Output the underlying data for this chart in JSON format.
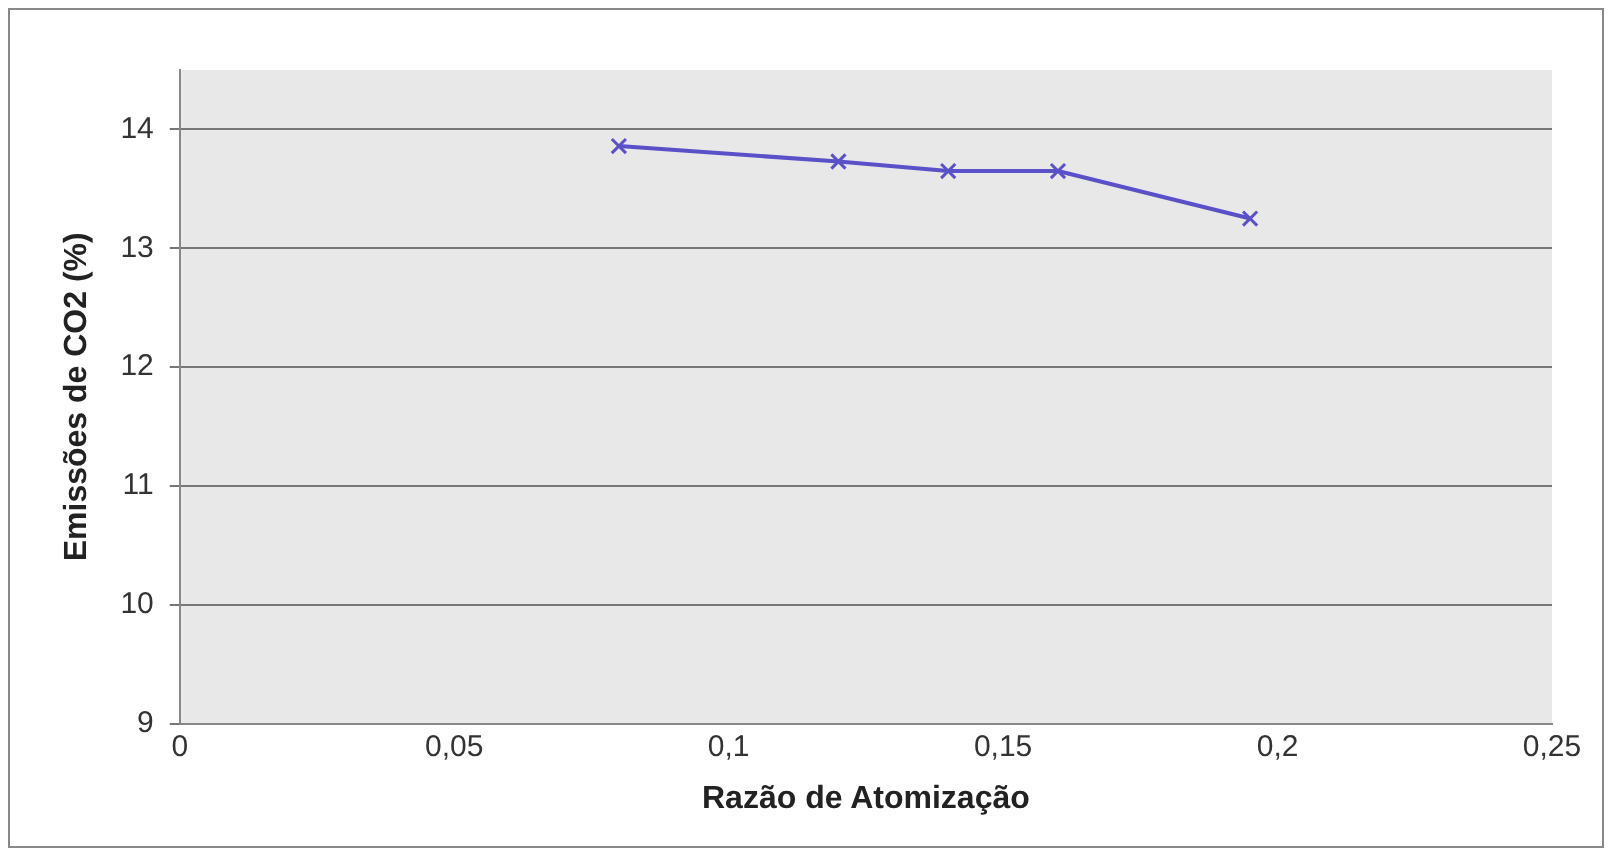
{
  "chart_data": {
    "type": "line",
    "xlabel": "Razão de Atomização",
    "ylabel": "Emissões de CO2 (%)",
    "x": [
      0.08,
      0.12,
      0.14,
      0.16,
      0.195
    ],
    "series": [
      {
        "color": "#5a50c8",
        "values": [
          13.86,
          13.73,
          13.65,
          13.65,
          13.25
        ]
      }
    ],
    "xlim": [
      0,
      0.25
    ],
    "xticks": [
      0,
      {
        "value": 0.05,
        "label": "0,05"
      },
      {
        "value": 0.1,
        "label": "0,1"
      },
      {
        "value": 0.15,
        "label": "0,15"
      },
      {
        "value": 0.2,
        "label": "0,2"
      },
      {
        "value": 0.25,
        "label": "0,25"
      }
    ],
    "ylim": [
      9,
      14.5
    ],
    "yticks": [
      9,
      10,
      11,
      12,
      13,
      14
    ],
    "grid": "y",
    "marker": "cross",
    "line_style": "solid",
    "legend": false
  }
}
